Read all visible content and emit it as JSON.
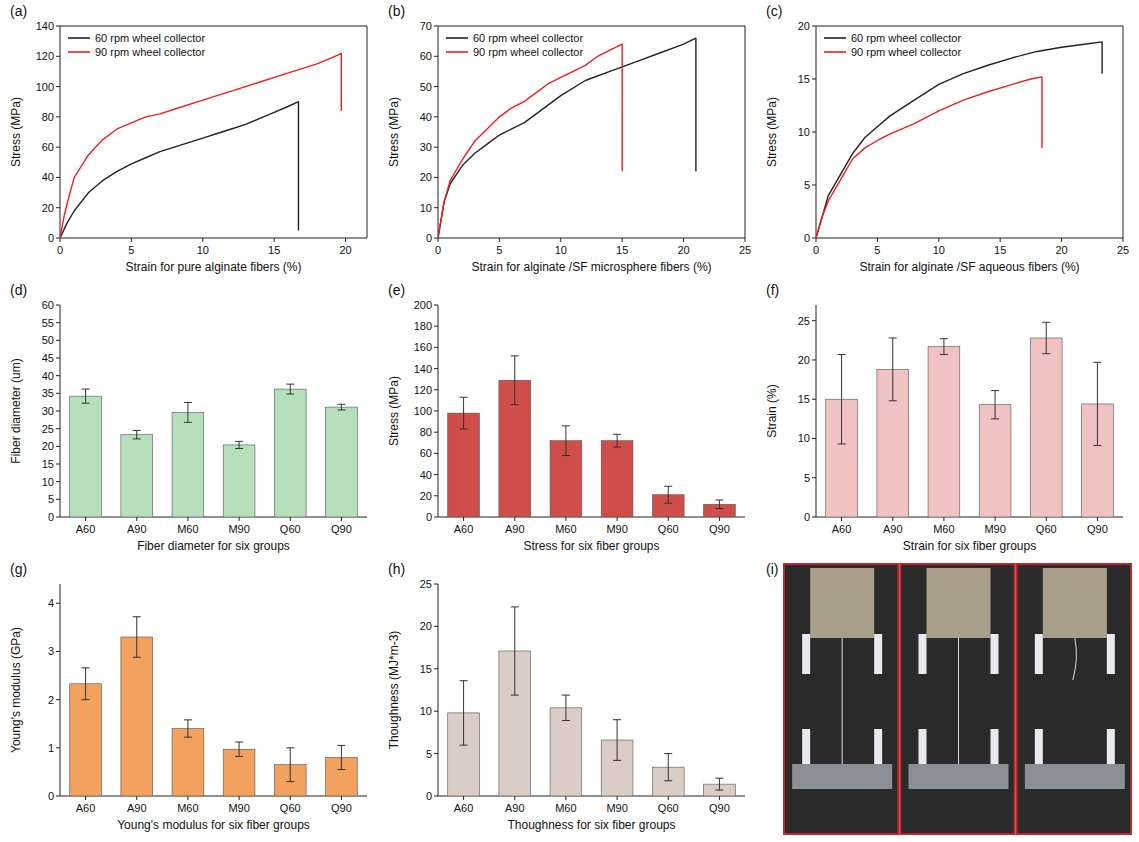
{
  "chart_data": [
    {
      "type": "line",
      "panel_label": "(a)",
      "x_label": "Strain for pure alginate fibers (%)",
      "y_label": "Stress (MPa)",
      "xlim": [
        0,
        21.5
      ],
      "xticks": [
        0,
        5,
        10,
        15,
        20
      ],
      "ylim": [
        0,
        140
      ],
      "yticks": [
        0,
        20,
        40,
        60,
        80,
        100,
        120,
        140
      ],
      "legend": "upper left",
      "series": [
        {
          "name": "60 rpm wheel collector",
          "color": "#222222",
          "x": [
            0,
            0.5,
            1,
            2,
            3,
            4,
            5,
            6,
            7,
            8,
            9,
            10,
            11,
            12,
            13,
            14,
            15,
            16,
            16.7,
            16.7
          ],
          "values": [
            0,
            10,
            18,
            30,
            38,
            44,
            49,
            53,
            57,
            60,
            63,
            66,
            69,
            72,
            75,
            79,
            83,
            87,
            90,
            5
          ]
        },
        {
          "name": "90 rpm wheel collector",
          "color": "#e8201d",
          "x": [
            0,
            0.3,
            0.7,
            1,
            2,
            3,
            4,
            5,
            6,
            7,
            8,
            10,
            12,
            14,
            16,
            18,
            19.5,
            19.7,
            19.7
          ],
          "values": [
            0,
            15,
            30,
            40,
            55,
            65,
            72,
            76,
            80,
            82,
            85,
            91,
            97,
            103,
            109,
            115,
            121,
            122,
            84
          ]
        }
      ]
    },
    {
      "type": "line",
      "panel_label": "(b)",
      "x_label": "Strain for alginate /SF microsphere fibers (%)",
      "y_label": "Stress (MPa)",
      "xlim": [
        0,
        25
      ],
      "xticks": [
        0,
        5,
        10,
        15,
        20,
        25
      ],
      "ylim": [
        0,
        70
      ],
      "yticks": [
        0,
        10,
        20,
        30,
        40,
        50,
        60,
        70
      ],
      "legend": "upper left",
      "series": [
        {
          "name": "60 rpm wheel collector",
          "color": "#222222",
          "x": [
            0,
            0.5,
            1,
            2,
            3,
            4,
            5,
            6,
            7,
            8,
            10,
            12,
            14,
            16,
            18,
            20,
            21,
            21
          ],
          "values": [
            0,
            12,
            18,
            24,
            28,
            31,
            34,
            36,
            38,
            41,
            47,
            52,
            55,
            58,
            61,
            64,
            66,
            22
          ]
        },
        {
          "name": "90 rpm wheel collector",
          "color": "#e8201d",
          "x": [
            0,
            0.5,
            1,
            2,
            3,
            4,
            5,
            6,
            7,
            8,
            9,
            10,
            11,
            12,
            13,
            14,
            15,
            15
          ],
          "values": [
            0,
            12,
            19,
            26,
            32,
            36,
            40,
            43,
            45,
            48,
            51,
            53,
            55,
            57,
            60,
            62,
            64,
            22
          ]
        }
      ]
    },
    {
      "type": "line",
      "panel_label": "(c)",
      "x_label": "Strain for alginate /SF aqueous fibers (%)",
      "y_label": "Stress (MPa)",
      "xlim": [
        0,
        25
      ],
      "xticks": [
        0,
        5,
        10,
        15,
        20,
        25
      ],
      "ylim": [
        0,
        20
      ],
      "yticks": [
        0,
        5,
        10,
        15,
        20
      ],
      "legend": "upper left",
      "series": [
        {
          "name": "60 rpm wheel collector",
          "color": "#222222",
          "x": [
            0,
            0.5,
            1,
            2,
            3,
            4,
            5,
            6,
            8,
            10,
            12,
            14,
            16,
            18,
            20,
            22,
            23.3,
            23.3
          ],
          "values": [
            0,
            2,
            4,
            6,
            8,
            9.5,
            10.5,
            11.5,
            13,
            14.5,
            15.5,
            16.3,
            17,
            17.6,
            18,
            18.3,
            18.5,
            15.5
          ]
        },
        {
          "name": "90 rpm wheel collector",
          "color": "#e8201d",
          "x": [
            0,
            0.5,
            1,
            2,
            3,
            4,
            5,
            6,
            8,
            10,
            12,
            14,
            16,
            17.5,
            18.4,
            18.4
          ],
          "values": [
            0,
            2,
            3.5,
            5.5,
            7.5,
            8.5,
            9.2,
            9.8,
            10.8,
            12,
            13,
            13.8,
            14.5,
            15,
            15.2,
            8.5
          ]
        }
      ]
    },
    {
      "type": "bar",
      "panel_label": "(d)",
      "x_label": "Fiber diameter for six groups",
      "y_label": "Fiber diameter (um)",
      "categories": [
        "A60",
        "A90",
        "M60",
        "M90",
        "Q60",
        "Q90"
      ],
      "values": [
        34.2,
        23.3,
        29.6,
        20.4,
        36.2,
        31.1
      ],
      "errors": [
        2,
        1.2,
        2.8,
        1,
        1.4,
        0.8
      ],
      "color": "#b6e0bc",
      "ylim": [
        0,
        60
      ],
      "yticks": [
        0,
        5,
        10,
        15,
        20,
        25,
        30,
        35,
        40,
        45,
        50,
        55,
        60
      ]
    },
    {
      "type": "bar",
      "panel_label": "(e)",
      "x_label": "Stress for six fiber groups",
      "y_label": "Stress (MPa)",
      "categories": [
        "A60",
        "A90",
        "M60",
        "M90",
        "Q60",
        "Q90"
      ],
      "values": [
        98,
        129,
        72,
        72,
        21,
        12
      ],
      "errors": [
        15,
        23,
        14,
        6,
        8,
        4
      ],
      "color": "#cf4e4a",
      "ylim": [
        0,
        200
      ],
      "yticks": [
        0,
        20,
        40,
        60,
        80,
        100,
        120,
        140,
        160,
        180,
        200
      ]
    },
    {
      "type": "bar",
      "panel_label": "(f)",
      "x_label": "Strain for six fiber groups",
      "y_label": "Strain (%)",
      "categories": [
        "A60",
        "A90",
        "M60",
        "M90",
        "Q60",
        "Q90"
      ],
      "values": [
        15,
        18.8,
        21.7,
        14.3,
        22.8,
        14.4
      ],
      "errors": [
        5.7,
        4,
        1,
        1.8,
        2,
        5.3
      ],
      "color": "#f0c2c2",
      "ylim": [
        0,
        27
      ],
      "yticks": [
        0,
        5,
        10,
        15,
        20,
        25
      ]
    },
    {
      "type": "bar",
      "panel_label": "(g)",
      "x_label": "Young's modulus for six fiber groups",
      "y_label": "Young's modulus (GPa)",
      "categories": [
        "A60",
        "A90",
        "M60",
        "M90",
        "Q60",
        "Q90"
      ],
      "values": [
        2.33,
        3.3,
        1.4,
        0.97,
        0.65,
        0.8
      ],
      "errors": [
        0.33,
        0.42,
        0.18,
        0.15,
        0.35,
        0.25
      ],
      "color": "#f2a25e",
      "ylim": [
        0,
        4.4
      ],
      "yticks": [
        0,
        1,
        2,
        3,
        4
      ]
    },
    {
      "type": "bar",
      "panel_label": "(h)",
      "x_label": "Thoughness for six fiber groups",
      "y_label": "Thoughness (MJ*m-3)",
      "categories": [
        "A60",
        "A90",
        "M60",
        "M90",
        "Q60",
        "Q90"
      ],
      "values": [
        9.8,
        17.1,
        10.4,
        6.6,
        3.4,
        1.4
      ],
      "errors": [
        3.8,
        5.2,
        1.5,
        2.4,
        1.6,
        0.7
      ],
      "color": "#d9cdc6",
      "ylim": [
        0,
        25
      ],
      "yticks": [
        0,
        5,
        10,
        15,
        20,
        25
      ]
    },
    {
      "type": "image",
      "panel_label": "(i)"
    }
  ]
}
